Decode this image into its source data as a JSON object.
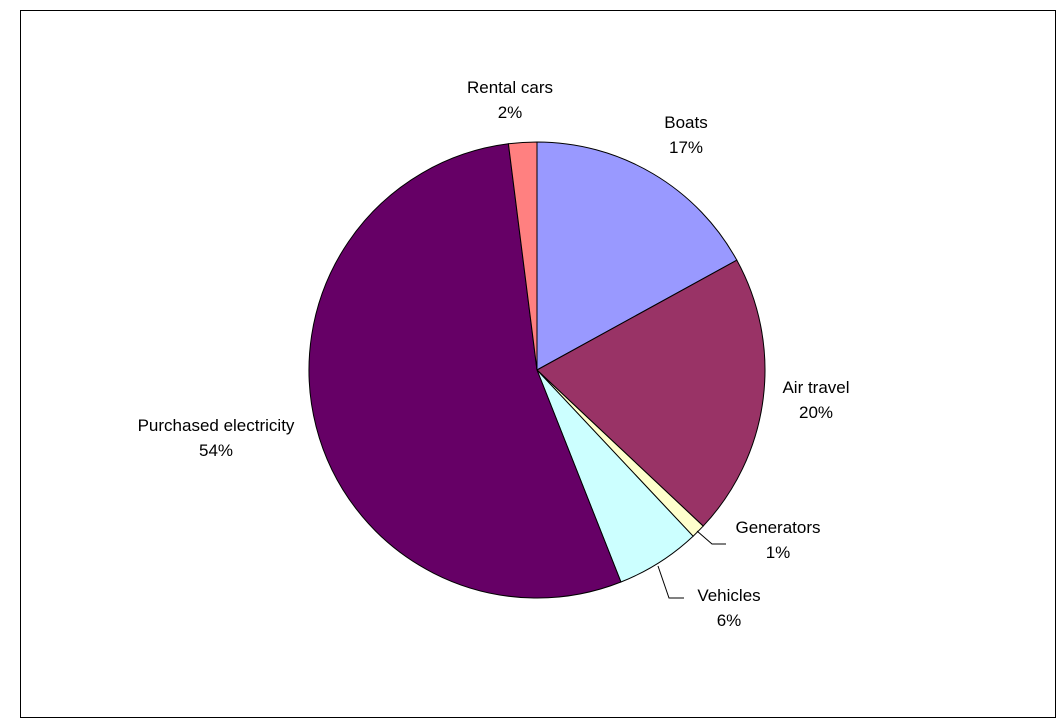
{
  "chart_data": {
    "type": "pie",
    "title": "",
    "slices": [
      {
        "label": "Boats",
        "value": 17,
        "percent_label": "17%",
        "color": "#9999ff"
      },
      {
        "label": "Air travel",
        "value": 20,
        "percent_label": "20%",
        "color": "#993366"
      },
      {
        "label": "Generators",
        "value": 1,
        "percent_label": "1%",
        "color": "#ffffcc"
      },
      {
        "label": "Vehicles",
        "value": 6,
        "percent_label": "6%",
        "color": "#ccffff"
      },
      {
        "label": "Purchased electricity",
        "value": 54,
        "percent_label": "54%",
        "color": "#660066"
      },
      {
        "label": "Rental cars",
        "value": 2,
        "percent_label": "2%",
        "color": "#ff8080"
      }
    ],
    "start_angle": "12 o'clock",
    "direction": "clockwise",
    "legend": "none",
    "data_labels": "category and percent"
  }
}
